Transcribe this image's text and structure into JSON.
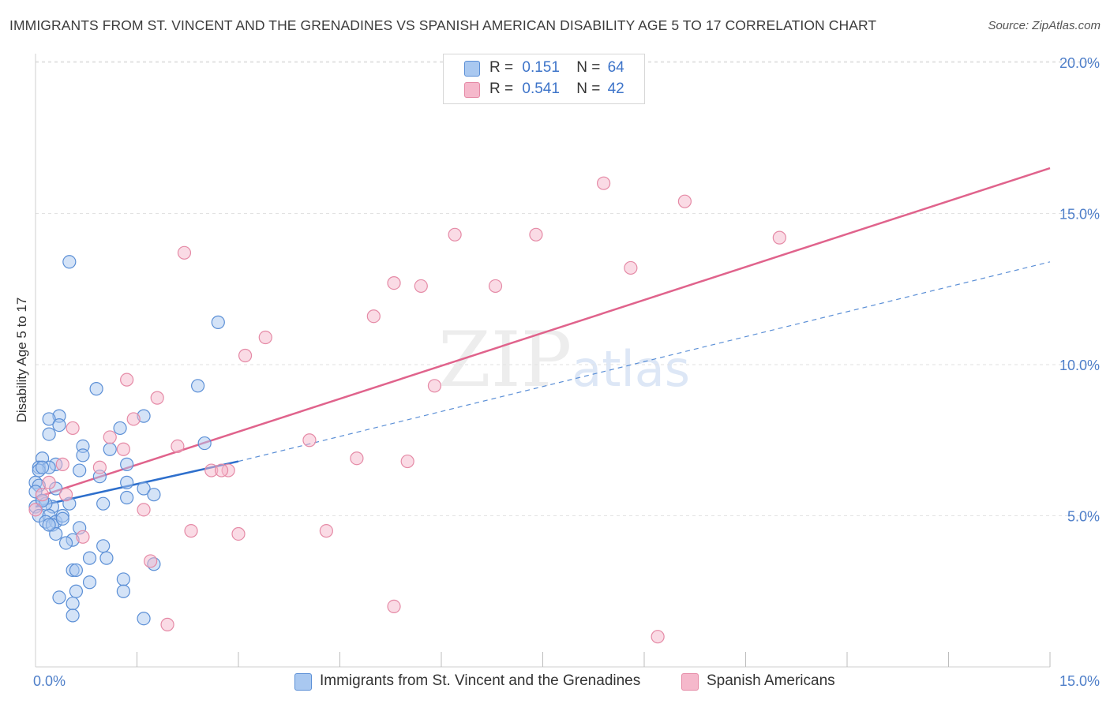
{
  "header": {
    "title": "IMMIGRANTS FROM ST. VINCENT AND THE GRENADINES VS SPANISH AMERICAN DISABILITY AGE 5 TO 17 CORRELATION CHART",
    "source": "Source: ZipAtlas.com"
  },
  "watermark": {
    "zip": "ZIP",
    "atlas": "atlas"
  },
  "legend": {
    "rows": [
      {
        "r_label": "R =",
        "r_value": "0.151",
        "n_label": "N =",
        "n_value": "64",
        "color": "#a9c8f0"
      },
      {
        "r_label": "R =",
        "r_value": "0.541",
        "n_label": "N =",
        "n_value": "42",
        "color": "#f5b8cb"
      }
    ]
  },
  "colors": {
    "blue_fill": "#a9c8f0",
    "blue_stroke": "#5b8fd6",
    "blue_line": "#2e6fcc",
    "pink_fill": "#f5b8cb",
    "pink_stroke": "#e58aa6",
    "pink_line": "#e0638c",
    "tick": "#4f7fc9"
  },
  "chart_data": {
    "type": "scatter",
    "ylabel": "Disability Age 5 to 17",
    "xlim": [
      0,
      15
    ],
    "ylim": [
      0,
      20.5
    ],
    "x_tick_labels": [
      "0.0%",
      "15.0%"
    ],
    "y_ticks": [
      5,
      10,
      15,
      20
    ],
    "y_tick_labels": [
      "5.0%",
      "10.0%",
      "15.0%",
      "20.0%"
    ],
    "grid": true,
    "series": [
      {
        "name": "Immigrants from St. Vincent and the Grenadines",
        "color": "#a9c8f0",
        "trend": {
          "x0": 0,
          "y0": 5.3,
          "x1": 3.0,
          "y1": 6.8,
          "dashed_to_x": 15,
          "dashed_to_y": 13.4
        },
        "points": [
          [
            0.5,
            13.4
          ],
          [
            2.7,
            11.4
          ],
          [
            0.9,
            9.2
          ],
          [
            2.4,
            9.3
          ],
          [
            0.35,
            8.3
          ],
          [
            0.2,
            8.2
          ],
          [
            1.6,
            8.3
          ],
          [
            0.35,
            8.0
          ],
          [
            0.2,
            7.7
          ],
          [
            1.25,
            7.9
          ],
          [
            2.5,
            7.4
          ],
          [
            0.7,
            7.3
          ],
          [
            1.1,
            7.2
          ],
          [
            0.7,
            7.0
          ],
          [
            0.1,
            6.9
          ],
          [
            0.3,
            6.7
          ],
          [
            0.05,
            6.6
          ],
          [
            1.35,
            6.7
          ],
          [
            0.65,
            6.5
          ],
          [
            0.95,
            6.3
          ],
          [
            0.0,
            6.1
          ],
          [
            0.05,
            6.0
          ],
          [
            1.35,
            6.1
          ],
          [
            0.3,
            5.9
          ],
          [
            1.6,
            5.9
          ],
          [
            0.0,
            5.8
          ],
          [
            1.75,
            5.7
          ],
          [
            1.35,
            5.6
          ],
          [
            0.1,
            5.5
          ],
          [
            0.5,
            5.4
          ],
          [
            1.0,
            5.4
          ],
          [
            0.25,
            5.3
          ],
          [
            0.0,
            5.3
          ],
          [
            0.05,
            5.0
          ],
          [
            0.2,
            5.0
          ],
          [
            0.15,
            4.8
          ],
          [
            0.3,
            4.8
          ],
          [
            0.25,
            4.7
          ],
          [
            0.65,
            4.6
          ],
          [
            0.3,
            4.4
          ],
          [
            0.55,
            4.2
          ],
          [
            0.45,
            4.1
          ],
          [
            1.0,
            4.0
          ],
          [
            0.8,
            3.6
          ],
          [
            1.05,
            3.6
          ],
          [
            1.75,
            3.4
          ],
          [
            0.55,
            3.2
          ],
          [
            0.6,
            3.2
          ],
          [
            1.3,
            2.9
          ],
          [
            0.8,
            2.8
          ],
          [
            1.3,
            2.5
          ],
          [
            0.6,
            2.5
          ],
          [
            0.35,
            2.3
          ],
          [
            0.55,
            2.1
          ],
          [
            0.55,
            1.7
          ],
          [
            1.6,
            1.6
          ],
          [
            0.4,
            5.0
          ],
          [
            0.15,
            5.4
          ],
          [
            0.2,
            6.6
          ],
          [
            0.05,
            6.5
          ],
          [
            0.4,
            4.9
          ],
          [
            0.1,
            5.5
          ],
          [
            0.2,
            4.7
          ],
          [
            0.1,
            6.6
          ]
        ]
      },
      {
        "name": "Spanish Americans",
        "color": "#f5b8cb",
        "trend": {
          "x0": 0,
          "y0": 5.6,
          "x1": 15,
          "y1": 16.5
        },
        "points": [
          [
            8.4,
            16.0
          ],
          [
            9.6,
            15.4
          ],
          [
            6.2,
            14.3
          ],
          [
            7.4,
            14.3
          ],
          [
            11.0,
            14.2
          ],
          [
            2.2,
            13.7
          ],
          [
            8.8,
            13.2
          ],
          [
            5.3,
            12.7
          ],
          [
            5.7,
            12.6
          ],
          [
            6.8,
            12.6
          ],
          [
            5.0,
            11.6
          ],
          [
            3.4,
            10.9
          ],
          [
            3.1,
            10.3
          ],
          [
            1.35,
            9.5
          ],
          [
            5.9,
            9.3
          ],
          [
            1.8,
            8.9
          ],
          [
            1.45,
            8.2
          ],
          [
            0.55,
            7.9
          ],
          [
            1.1,
            7.6
          ],
          [
            4.05,
            7.5
          ],
          [
            2.1,
            7.3
          ],
          [
            1.3,
            7.2
          ],
          [
            4.75,
            6.9
          ],
          [
            5.5,
            6.8
          ],
          [
            0.4,
            6.7
          ],
          [
            0.95,
            6.6
          ],
          [
            2.6,
            6.5
          ],
          [
            2.85,
            6.5
          ],
          [
            2.75,
            6.5
          ],
          [
            0.2,
            6.1
          ],
          [
            0.45,
            5.7
          ],
          [
            0.1,
            5.7
          ],
          [
            1.6,
            5.2
          ],
          [
            0.0,
            5.2
          ],
          [
            2.3,
            4.5
          ],
          [
            4.3,
            4.5
          ],
          [
            3.0,
            4.4
          ],
          [
            0.7,
            4.3
          ],
          [
            1.7,
            3.5
          ],
          [
            5.3,
            2.0
          ],
          [
            1.95,
            1.4
          ],
          [
            9.2,
            1.0
          ]
        ]
      }
    ]
  },
  "bottom_legend": {
    "items": [
      {
        "label": "Immigrants from St. Vincent and the Grenadines",
        "color": "#a9c8f0"
      },
      {
        "label": "Spanish Americans",
        "color": "#f5b8cb"
      }
    ]
  }
}
